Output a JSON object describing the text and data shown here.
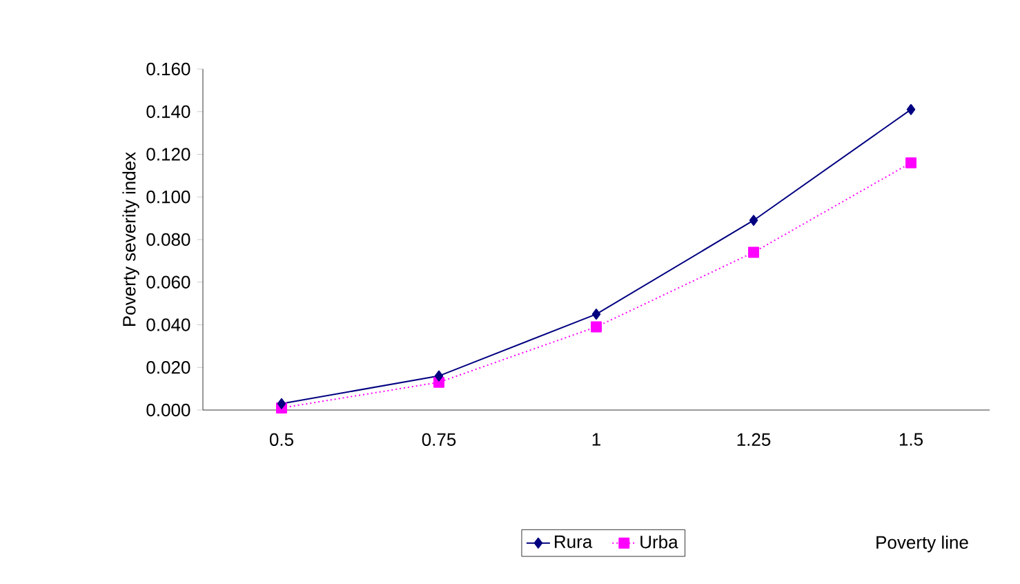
{
  "chart_data": {
    "type": "line",
    "xlabel": "Poverty line",
    "ylabel": "Poverty severity index",
    "categories": [
      "0.5",
      "0.75",
      "1",
      "1.25",
      "1.5"
    ],
    "series": [
      {
        "name": "Rura",
        "color": "#000080",
        "marker": "diamond",
        "line_style": "solid",
        "values": [
          0.003,
          0.016,
          0.045,
          0.089,
          0.141
        ]
      },
      {
        "name": "Urba",
        "color": "#ff00ff",
        "marker": "square",
        "line_style": "dotted",
        "values": [
          0.001,
          0.013,
          0.039,
          0.074,
          0.116
        ]
      }
    ],
    "ylim": [
      0,
      0.16
    ],
    "yticks": [
      {
        "value": 0,
        "label": "0.000"
      },
      {
        "value": 0.02,
        "label": "0.020"
      },
      {
        "value": 0.04,
        "label": "0.040"
      },
      {
        "value": 0.06,
        "label": "0.060"
      },
      {
        "value": 0.08,
        "label": "0.080"
      },
      {
        "value": 0.1,
        "label": "0.100"
      },
      {
        "value": 0.12,
        "label": "0.120"
      },
      {
        "value": 0.14,
        "label": "0.140"
      },
      {
        "value": 0.16,
        "label": "0.160"
      }
    ],
    "grid": false,
    "legend": "bottom"
  }
}
